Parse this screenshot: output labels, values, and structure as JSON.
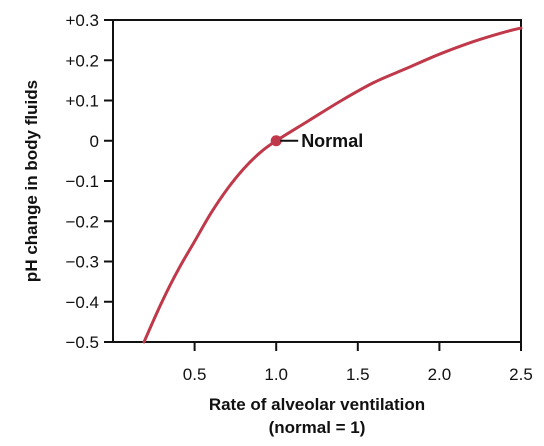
{
  "chart_data": {
    "type": "line",
    "xlabel": [
      "Rate of alveolar ventilation",
      "(normal = 1)"
    ],
    "ylabel": "pH change in body fluids",
    "xlim": [
      0,
      2.5
    ],
    "ylim": [
      -0.5,
      0.3
    ],
    "x_ticks": [
      0.5,
      1.0,
      1.5,
      2.0,
      2.5
    ],
    "x_tick_labels": [
      "0.5",
      "1.0",
      "1.5",
      "2.0",
      "2.5"
    ],
    "y_ticks": [
      0.3,
      0.2,
      0.1,
      0,
      -0.1,
      -0.2,
      -0.3,
      -0.4,
      -0.5
    ],
    "y_tick_labels": [
      "+0.3",
      "+0.2",
      "+0.1",
      "0",
      "−0.1",
      "−0.2",
      "−0.3",
      "−0.4",
      "−0.5"
    ],
    "grid": false,
    "series": [
      {
        "color": "#c0394b",
        "x": [
          0.19,
          0.3,
          0.4,
          0.5,
          0.6,
          0.7,
          0.8,
          0.9,
          1.0,
          1.2,
          1.4,
          1.6,
          1.8,
          2.0,
          2.2,
          2.4,
          2.5
        ],
        "values": [
          -0.5,
          -0.4,
          -0.32,
          -0.25,
          -0.18,
          -0.12,
          -0.07,
          -0.03,
          0,
          0.05,
          0.1,
          0.145,
          0.18,
          0.215,
          0.245,
          0.27,
          0.28
        ]
      }
    ],
    "annotations": [
      {
        "x": 1.0,
        "y": 0,
        "text": "Normal"
      }
    ]
  }
}
